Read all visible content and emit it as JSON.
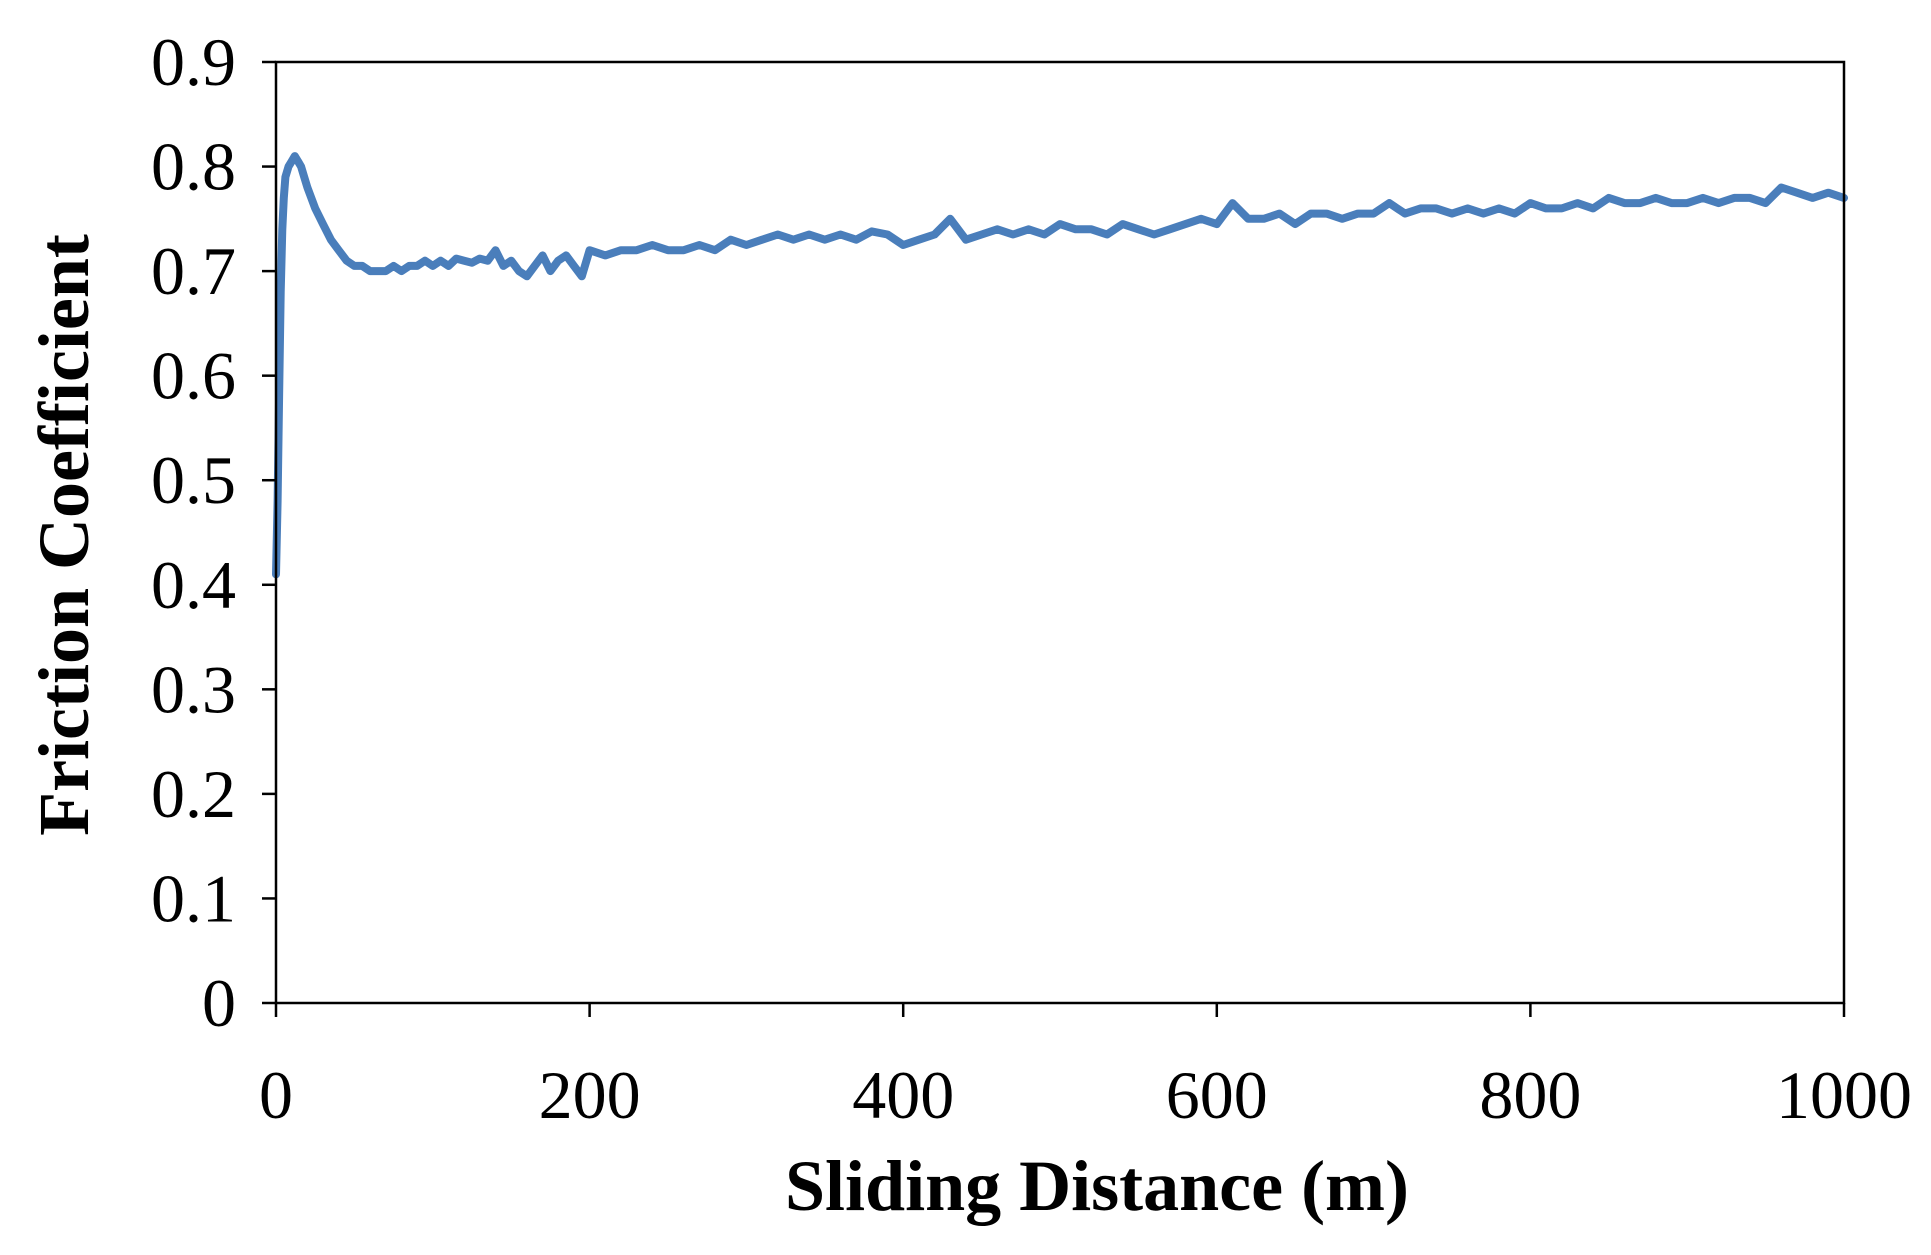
{
  "chart_data": {
    "type": "line",
    "title": "",
    "xlabel": "Sliding Distance (m)",
    "ylabel": "Friction Coefficient",
    "xlim": [
      0,
      1000
    ],
    "ylim": [
      0,
      0.9
    ],
    "x_ticks": [
      0,
      200,
      400,
      600,
      800,
      1000
    ],
    "x_tick_labels": [
      "0",
      "200",
      "400",
      "600",
      "800",
      "1000"
    ],
    "y_ticks": [
      0,
      0.1,
      0.2,
      0.3,
      0.4,
      0.5,
      0.6,
      0.7,
      0.8,
      0.9
    ],
    "y_tick_labels": [
      "0",
      "0.1",
      "0.2",
      "0.3",
      "0.4",
      "0.5",
      "0.6",
      "0.7",
      "0.8",
      "0.9"
    ],
    "grid": false,
    "legend": "none",
    "series": [
      {
        "color": "#4a7ebb",
        "x": [
          0,
          1,
          2,
          3,
          4,
          5,
          6,
          8,
          10,
          12,
          14,
          16,
          18,
          20,
          25,
          30,
          35,
          40,
          45,
          50,
          55,
          60,
          65,
          70,
          75,
          80,
          85,
          90,
          95,
          100,
          105,
          110,
          115,
          120,
          125,
          130,
          135,
          140,
          145,
          150,
          155,
          160,
          165,
          170,
          175,
          180,
          185,
          190,
          195,
          200,
          210,
          220,
          230,
          240,
          250,
          260,
          270,
          280,
          290,
          300,
          310,
          320,
          330,
          340,
          350,
          360,
          370,
          380,
          390,
          400,
          410,
          420,
          430,
          440,
          450,
          460,
          470,
          480,
          490,
          500,
          510,
          520,
          530,
          540,
          550,
          560,
          570,
          580,
          590,
          600,
          610,
          620,
          630,
          640,
          650,
          660,
          670,
          680,
          690,
          700,
          710,
          720,
          730,
          740,
          750,
          760,
          770,
          780,
          790,
          800,
          810,
          820,
          830,
          840,
          850,
          860,
          870,
          880,
          890,
          900,
          910,
          920,
          930,
          940,
          950,
          960,
          970,
          980,
          990,
          1000
        ],
        "y": [
          0.41,
          0.48,
          0.58,
          0.68,
          0.74,
          0.77,
          0.79,
          0.8,
          0.805,
          0.81,
          0.805,
          0.8,
          0.79,
          0.78,
          0.76,
          0.745,
          0.73,
          0.72,
          0.71,
          0.705,
          0.705,
          0.7,
          0.7,
          0.7,
          0.705,
          0.7,
          0.705,
          0.705,
          0.71,
          0.705,
          0.71,
          0.705,
          0.712,
          0.71,
          0.708,
          0.712,
          0.71,
          0.72,
          0.705,
          0.71,
          0.7,
          0.695,
          0.705,
          0.715,
          0.7,
          0.71,
          0.715,
          0.705,
          0.695,
          0.72,
          0.715,
          0.72,
          0.72,
          0.725,
          0.72,
          0.72,
          0.725,
          0.72,
          0.73,
          0.725,
          0.73,
          0.735,
          0.73,
          0.735,
          0.73,
          0.735,
          0.73,
          0.738,
          0.735,
          0.725,
          0.73,
          0.735,
          0.75,
          0.73,
          0.735,
          0.74,
          0.735,
          0.74,
          0.735,
          0.745,
          0.74,
          0.74,
          0.735,
          0.745,
          0.74,
          0.735,
          0.74,
          0.745,
          0.75,
          0.745,
          0.765,
          0.75,
          0.75,
          0.755,
          0.745,
          0.755,
          0.755,
          0.75,
          0.755,
          0.755,
          0.765,
          0.755,
          0.76,
          0.76,
          0.755,
          0.76,
          0.755,
          0.76,
          0.755,
          0.765,
          0.76,
          0.76,
          0.765,
          0.76,
          0.77,
          0.765,
          0.765,
          0.77,
          0.765,
          0.765,
          0.77,
          0.765,
          0.77,
          0.77,
          0.765,
          0.78,
          0.775,
          0.77,
          0.775,
          0.77
        ]
      }
    ]
  }
}
